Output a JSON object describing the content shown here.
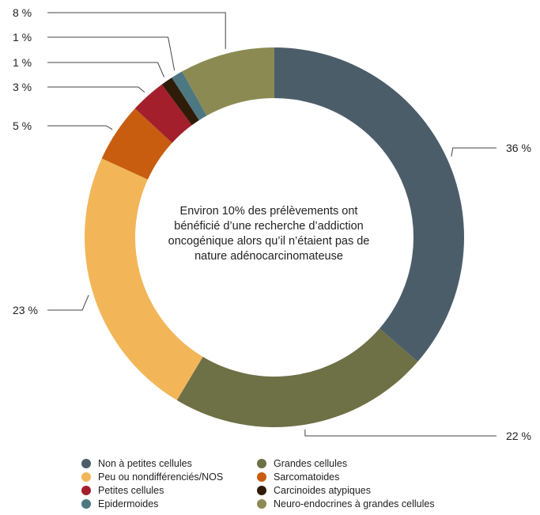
{
  "chart_data": {
    "type": "pie",
    "style": "donut",
    "center_text": [
      "Environ 10% des prélèvements ont",
      "bénéficié d’une recherche d’addiction",
      "oncogénique alors qu’il n’étaient pas de",
      "nature adénocarcinomateuse"
    ],
    "slices": [
      {
        "name": "Non à petites cellules",
        "value": 36,
        "label": "36 %",
        "color": "#4c5d6a"
      },
      {
        "name": "Grandes cellules",
        "value": 22,
        "label": "22 %",
        "color": "#6e7046"
      },
      {
        "name": "Peu ou nondifférenciés/NOS",
        "value": 23,
        "label": "23 %",
        "color": "#f2b659"
      },
      {
        "name": "Sarcomatoides",
        "value": 5,
        "label": "5 %",
        "color": "#c85d10"
      },
      {
        "name": "Petites cellules",
        "value": 3,
        "label": "3 %",
        "color": "#a31f2c"
      },
      {
        "name": "Carcinoides atypiques",
        "value": 1,
        "label": "1 %",
        "color": "#2f1c08"
      },
      {
        "name": "Epidermoides",
        "value": 1,
        "label": "1 %",
        "color": "#4d7882"
      },
      {
        "name": "Neuro-endocrines à grandes cellules",
        "value": 8,
        "label": "8 %",
        "color": "#8b8a52"
      }
    ],
    "legend_placement": "bottom",
    "legend": [
      {
        "label": "Non à petites cellules",
        "color": "#4c5d6a"
      },
      {
        "label": "Grandes cellules",
        "color": "#6e7046"
      },
      {
        "label": "Peu ou nondifférenciés/NOS",
        "color": "#f2b659"
      },
      {
        "label": "Sarcomatoides",
        "color": "#c85d10"
      },
      {
        "label": "Petites cellules",
        "color": "#a31f2c"
      },
      {
        "label": "Carcinoides atypiques",
        "color": "#2f1c08"
      },
      {
        "label": "Epidermoides",
        "color": "#4d7882"
      },
      {
        "label": "Neuro-endocrines à grandes cellules",
        "color": "#8b8a52"
      }
    ]
  }
}
